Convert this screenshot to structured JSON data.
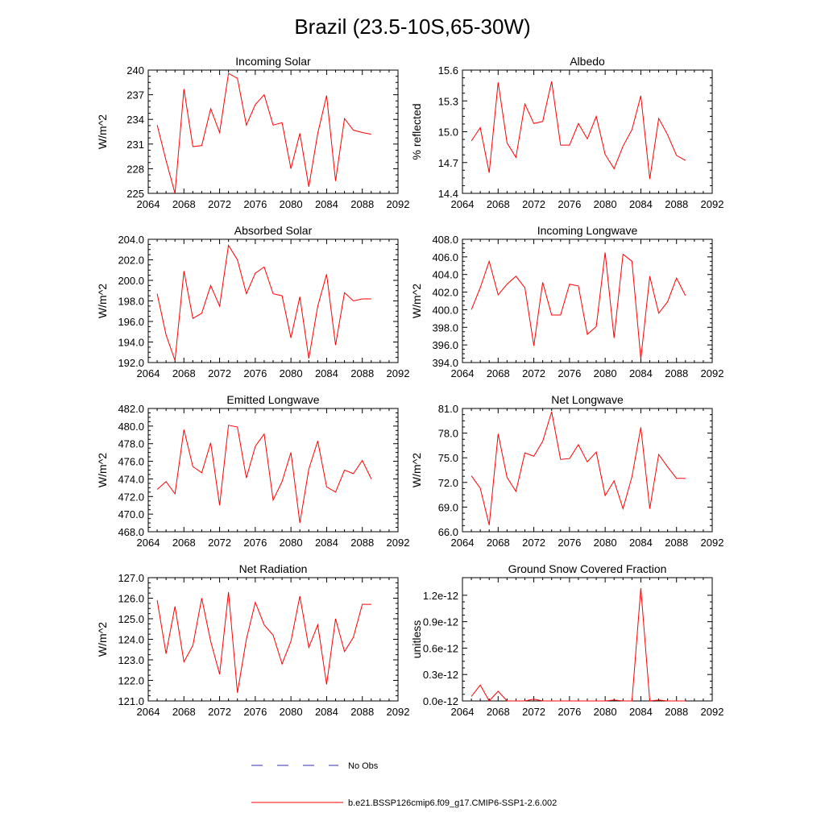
{
  "figure": {
    "title": "Brazil (23.5-10S,65-30W)",
    "legend": [
      {
        "label": "No Obs",
        "color": "#3030b0",
        "dashed": true
      },
      {
        "label": "b.e21.BSSP126cmip6.f09_g17.CMIP6-SSP1-2.6.002",
        "color": "#ff0000",
        "dashed": false
      }
    ],
    "series_color": "#ff0000"
  },
  "chart_data": [
    {
      "type": "line",
      "title": "Incoming Solar",
      "xlabel": "",
      "ylabel": "W/m^2",
      "xlim": [
        2064,
        2092
      ],
      "ylim": [
        225,
        240
      ],
      "xticks": [
        2064,
        2068,
        2072,
        2076,
        2080,
        2084,
        2088,
        2092
      ],
      "yticks": [
        225,
        228,
        231,
        234,
        237,
        240
      ],
      "ytick_labels": [
        "225",
        "228",
        "231",
        "234",
        "237",
        "240"
      ],
      "x": [
        2065,
        2066,
        2067,
        2068,
        2069,
        2070,
        2071,
        2072,
        2073,
        2074,
        2075,
        2076,
        2077,
        2078,
        2079,
        2080,
        2081,
        2082,
        2083,
        2084,
        2085,
        2086,
        2087,
        2088,
        2089
      ],
      "values": [
        233.3,
        229.0,
        225.0,
        237.7,
        230.7,
        230.8,
        235.3,
        232.4,
        239.6,
        239.0,
        233.3,
        235.8,
        237.0,
        233.3,
        233.6,
        228.0,
        232.3,
        225.8,
        232.3,
        236.9,
        226.5,
        234.1,
        232.7,
        232.4,
        232.2
      ]
    },
    {
      "type": "line",
      "title": "Albedo",
      "xlabel": "",
      "ylabel": "% reflected",
      "xlim": [
        2064,
        2092
      ],
      "ylim": [
        14.4,
        15.6
      ],
      "xticks": [
        2064,
        2068,
        2072,
        2076,
        2080,
        2084,
        2088,
        2092
      ],
      "yticks": [
        14.4,
        14.7,
        15.0,
        15.3,
        15.6
      ],
      "ytick_labels": [
        "14.4",
        "14.7",
        "15.0",
        "15.3",
        "15.6"
      ],
      "x": [
        2065,
        2066,
        2067,
        2068,
        2069,
        2070,
        2071,
        2072,
        2073,
        2074,
        2075,
        2076,
        2077,
        2078,
        2079,
        2080,
        2081,
        2082,
        2083,
        2084,
        2085,
        2086,
        2087,
        2088,
        2089
      ],
      "values": [
        14.91,
        15.04,
        14.6,
        15.48,
        14.89,
        14.75,
        15.27,
        15.08,
        15.1,
        15.49,
        14.87,
        14.87,
        15.08,
        14.93,
        15.15,
        14.78,
        14.64,
        14.86,
        15.02,
        15.35,
        14.54,
        15.13,
        14.97,
        14.77,
        14.72
      ]
    },
    {
      "type": "line",
      "title": "Absorbed Solar",
      "xlabel": "",
      "ylabel": "W/m^2",
      "xlim": [
        2064,
        2092
      ],
      "ylim": [
        192.0,
        204.0
      ],
      "xticks": [
        2064,
        2068,
        2072,
        2076,
        2080,
        2084,
        2088,
        2092
      ],
      "yticks": [
        192,
        194,
        196,
        198,
        200,
        202,
        204
      ],
      "ytick_labels": [
        "192.0",
        "194.0",
        "196.0",
        "198.0",
        "200.0",
        "202.0",
        "204.0"
      ],
      "x": [
        2065,
        2066,
        2067,
        2068,
        2069,
        2070,
        2071,
        2072,
        2073,
        2074,
        2075,
        2076,
        2077,
        2078,
        2079,
        2080,
        2081,
        2082,
        2083,
        2084,
        2085,
        2086,
        2087,
        2088,
        2089
      ],
      "values": [
        198.7,
        194.7,
        192.2,
        200.9,
        196.3,
        196.8,
        199.5,
        197.5,
        203.4,
        202.0,
        198.7,
        200.7,
        201.3,
        198.7,
        198.5,
        194.4,
        198.4,
        192.4,
        197.5,
        200.6,
        193.7,
        198.8,
        198.0,
        198.2,
        198.2
      ]
    },
    {
      "type": "line",
      "title": "Incoming Longwave",
      "xlabel": "",
      "ylabel": "W/m^2",
      "xlim": [
        2064,
        2092
      ],
      "ylim": [
        394.0,
        408.0
      ],
      "xticks": [
        2064,
        2068,
        2072,
        2076,
        2080,
        2084,
        2088,
        2092
      ],
      "yticks": [
        394,
        396,
        398,
        400,
        402,
        404,
        406,
        408
      ],
      "ytick_labels": [
        "394.0",
        "396.0",
        "398.0",
        "400.0",
        "402.0",
        "404.0",
        "406.0",
        "408.0"
      ],
      "x": [
        2065,
        2066,
        2067,
        2068,
        2069,
        2070,
        2071,
        2072,
        2073,
        2074,
        2075,
        2076,
        2077,
        2078,
        2079,
        2080,
        2081,
        2082,
        2083,
        2084,
        2085,
        2086,
        2087,
        2088,
        2089
      ],
      "values": [
        400.0,
        402.5,
        405.5,
        401.7,
        402.9,
        403.8,
        402.5,
        395.9,
        403.1,
        399.4,
        399.4,
        402.9,
        402.7,
        397.2,
        398.1,
        406.5,
        396.8,
        406.3,
        405.5,
        394.4,
        403.8,
        399.6,
        400.9,
        403.6,
        401.6
      ]
    },
    {
      "type": "line",
      "title": "Emitted Longwave",
      "xlabel": "",
      "ylabel": "W/m^2",
      "xlim": [
        2064,
        2092
      ],
      "ylim": [
        468.0,
        482.0
      ],
      "xticks": [
        2064,
        2068,
        2072,
        2076,
        2080,
        2084,
        2088,
        2092
      ],
      "yticks": [
        468,
        470,
        472,
        474,
        476,
        478,
        480,
        482
      ],
      "ytick_labels": [
        "468.0",
        "470.0",
        "472.0",
        "474.0",
        "476.0",
        "478.0",
        "480.0",
        "482.0"
      ],
      "x": [
        2065,
        2066,
        2067,
        2068,
        2069,
        2070,
        2071,
        2072,
        2073,
        2074,
        2075,
        2076,
        2077,
        2078,
        2079,
        2080,
        2081,
        2082,
        2083,
        2084,
        2085,
        2086,
        2087,
        2088,
        2089
      ],
      "values": [
        472.8,
        473.7,
        472.3,
        479.6,
        475.4,
        474.7,
        478.1,
        471.0,
        480.1,
        479.9,
        474.1,
        477.7,
        479.1,
        471.6,
        473.7,
        477.0,
        469.0,
        475.1,
        478.3,
        473.1,
        472.5,
        475.0,
        474.6,
        476.1,
        474.0
      ]
    },
    {
      "type": "line",
      "title": "Net Longwave",
      "xlabel": "",
      "ylabel": "W/m^2",
      "xlim": [
        2064,
        2092
      ],
      "ylim": [
        66.0,
        81.0
      ],
      "xticks": [
        2064,
        2068,
        2072,
        2076,
        2080,
        2084,
        2088,
        2092
      ],
      "yticks": [
        66,
        69,
        72,
        75,
        78,
        81
      ],
      "ytick_labels": [
        "66.0",
        "69.0",
        "72.0",
        "75.0",
        "78.0",
        "81.0"
      ],
      "x": [
        2065,
        2066,
        2067,
        2068,
        2069,
        2070,
        2071,
        2072,
        2073,
        2074,
        2075,
        2076,
        2077,
        2078,
        2079,
        2080,
        2081,
        2082,
        2083,
        2084,
        2085,
        2086,
        2087,
        2088,
        2089
      ],
      "values": [
        72.8,
        71.3,
        66.8,
        77.9,
        72.6,
        70.9,
        75.6,
        75.2,
        77.0,
        80.6,
        74.8,
        74.9,
        76.6,
        74.5,
        75.7,
        70.4,
        72.2,
        68.8,
        72.7,
        78.7,
        68.8,
        75.4,
        73.9,
        72.5,
        72.5
      ]
    },
    {
      "type": "line",
      "title": "Net Radiation",
      "xlabel": "",
      "ylabel": "W/m^2",
      "xlim": [
        2064,
        2092
      ],
      "ylim": [
        121.0,
        127.0
      ],
      "xticks": [
        2064,
        2068,
        2072,
        2076,
        2080,
        2084,
        2088,
        2092
      ],
      "yticks": [
        121,
        122,
        123,
        124,
        125,
        126,
        127
      ],
      "ytick_labels": [
        "121.0",
        "122.0",
        "123.0",
        "124.0",
        "125.0",
        "126.0",
        "127.0"
      ],
      "x": [
        2065,
        2066,
        2067,
        2068,
        2069,
        2070,
        2071,
        2072,
        2073,
        2074,
        2075,
        2076,
        2077,
        2078,
        2079,
        2080,
        2081,
        2082,
        2083,
        2084,
        2085,
        2086,
        2087,
        2088,
        2089
      ],
      "values": [
        125.9,
        123.3,
        125.6,
        122.9,
        123.7,
        126.0,
        123.9,
        122.3,
        126.3,
        121.4,
        124.0,
        125.8,
        124.7,
        124.2,
        122.8,
        123.9,
        126.1,
        123.6,
        124.7,
        121.8,
        125.0,
        123.4,
        124.1,
        125.7,
        125.7
      ]
    },
    {
      "type": "line",
      "title": "Ground Snow Covered Fraction",
      "xlabel": "",
      "ylabel": "unitless",
      "xlim": [
        2064,
        2092
      ],
      "ylim": [
        0,
        1.4e-12
      ],
      "xticks": [
        2064,
        2068,
        2072,
        2076,
        2080,
        2084,
        2088,
        2092
      ],
      "yticks": [
        0,
        3e-13,
        6e-13,
        9e-13,
        1.2e-12
      ],
      "ytick_labels": [
        "0.0e-12",
        "0.3e-12",
        "0.6e-12",
        "0.9e-12",
        "1.2e-12"
      ],
      "x": [
        2065,
        2066,
        2067,
        2068,
        2069,
        2070,
        2071,
        2072,
        2073,
        2074,
        2075,
        2076,
        2077,
        2078,
        2079,
        2080,
        2081,
        2082,
        2083,
        2084,
        2085,
        2086,
        2087,
        2088,
        2089
      ],
      "values": [
        5e-14,
        1.8e-13,
        0,
        1.1e-13,
        0,
        0,
        0,
        2e-14,
        0,
        0,
        0,
        0,
        0,
        0,
        0,
        0,
        1e-14,
        0,
        0,
        1.28e-12,
        0,
        1e-14,
        0,
        0,
        0
      ]
    }
  ]
}
